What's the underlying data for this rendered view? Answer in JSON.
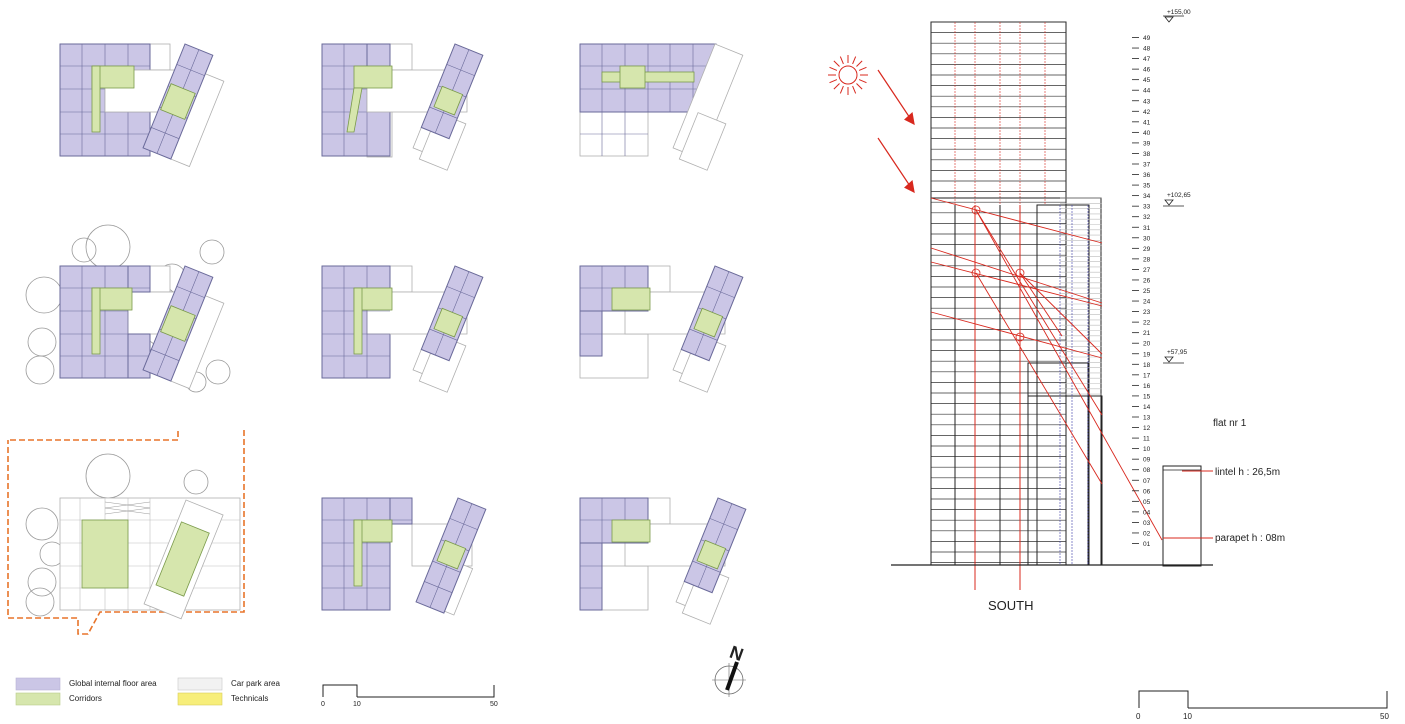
{
  "legend": {
    "items": [
      {
        "label": "Global internal floor area",
        "color": "#cbc6e6"
      },
      {
        "label": "Corridors",
        "color": "#d6e6ad"
      },
      {
        "label": "Car park area",
        "color": "#f2f2f2"
      },
      {
        "label": "Technicals",
        "color": "#f7ee7a"
      }
    ]
  },
  "plan_scale": {
    "labels": [
      "0",
      "10",
      "50"
    ]
  },
  "section_scale": {
    "labels": [
      "0",
      "10",
      "50"
    ]
  },
  "section": {
    "title": "SOUTH",
    "levels": [
      "+155,00",
      "+102,65",
      "+57,95"
    ],
    "floors": [
      "49",
      "48",
      "47",
      "46",
      "45",
      "44",
      "43",
      "42",
      "41",
      "40",
      "39",
      "38",
      "37",
      "36",
      "35",
      "34",
      "33",
      "32",
      "31",
      "30",
      "29",
      "28",
      "27",
      "26",
      "25",
      "24",
      "23",
      "22",
      "21",
      "20",
      "19",
      "18",
      "17",
      "16",
      "15",
      "14",
      "13",
      "12",
      "11",
      "10",
      "09",
      "08",
      "07",
      "06",
      "05",
      "04",
      "03",
      "02",
      "01"
    ],
    "flat_label": "flat nr 1",
    "lintel_label": "lintel  h : 26,5m",
    "parapet_label": "parapet  h : 08m"
  },
  "north_arrow": {
    "letter": "N"
  },
  "colors": {
    "floor_area": "#cbc6e6",
    "corridor": "#d6e6ad",
    "sun_lines": "#d8281e",
    "site_boundary": "#e8742a",
    "technicals": "#f7ee7a"
  }
}
